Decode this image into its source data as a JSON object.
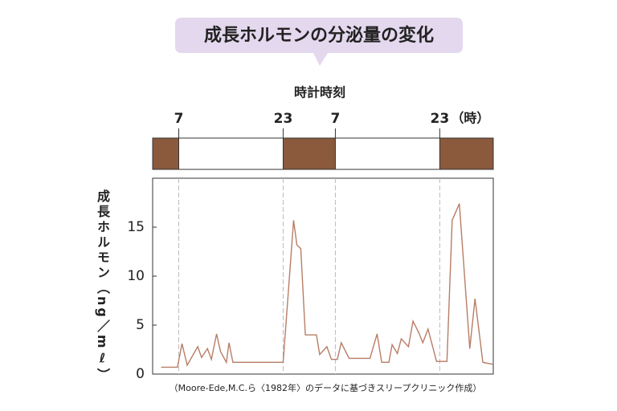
{
  "chart_data": {
    "type": "line",
    "title": "成長ホルモンの分泌量の変化",
    "x_label": "時計時刻",
    "x_unit": "（時）",
    "y_label": "成長ホルモン（ng／mℓ）",
    "caption": "（Moore-Ede,M.C.ら〈1982年〉のデータに基づきスリープクリニック作成）",
    "xlim": [
      -4,
      48.2
    ],
    "xticks": [
      {
        "value": 0,
        "label": "7"
      },
      {
        "value": 16,
        "label": "23"
      },
      {
        "value": 24,
        "label": "7"
      },
      {
        "value": 40,
        "label": "23"
      }
    ],
    "ylim": [
      0,
      20
    ],
    "yticks": [
      0,
      5,
      10,
      15
    ],
    "sleep_color": "#8b5a3c",
    "sleep": [
      [
        -4,
        0
      ],
      [
        16,
        24
      ],
      [
        40,
        48.2
      ]
    ],
    "series": [
      {
        "color": "#b87d66",
        "x": [
          -2.7,
          -0.2,
          0.5,
          1.3,
          2.9,
          3.5,
          4.4,
          5.0,
          5.8,
          6.4,
          7.3,
          7.7,
          8.3,
          16,
          17.6,
          18.1,
          18.7,
          19.4,
          21.1,
          21.6,
          22.7,
          23.4,
          24.3,
          24.9,
          26.1,
          29.3,
          30.4,
          31.1,
          32.2,
          32.7,
          33.5,
          34.1,
          35.2,
          35.9,
          36.8,
          37.4,
          38.2,
          39.5,
          41.1,
          41.9,
          43.0,
          44.6,
          45.4,
          46.6,
          48.1
        ],
        "values": [
          0.7,
          0.7,
          3.1,
          0.9,
          2.8,
          1.7,
          2.6,
          1.5,
          4.1,
          2.3,
          1.2,
          3.2,
          1.2,
          1.2,
          15.7,
          13.2,
          12.8,
          4.0,
          4.0,
          2.0,
          2.8,
          1.5,
          1.5,
          3.2,
          1.6,
          1.6,
          4.1,
          1.2,
          1.2,
          3.0,
          2.1,
          3.6,
          2.8,
          5.4,
          4.2,
          3.2,
          4.6,
          1.3,
          1.3,
          15.7,
          17.4,
          2.6,
          7.7,
          1.2,
          1.0
        ]
      }
    ]
  }
}
